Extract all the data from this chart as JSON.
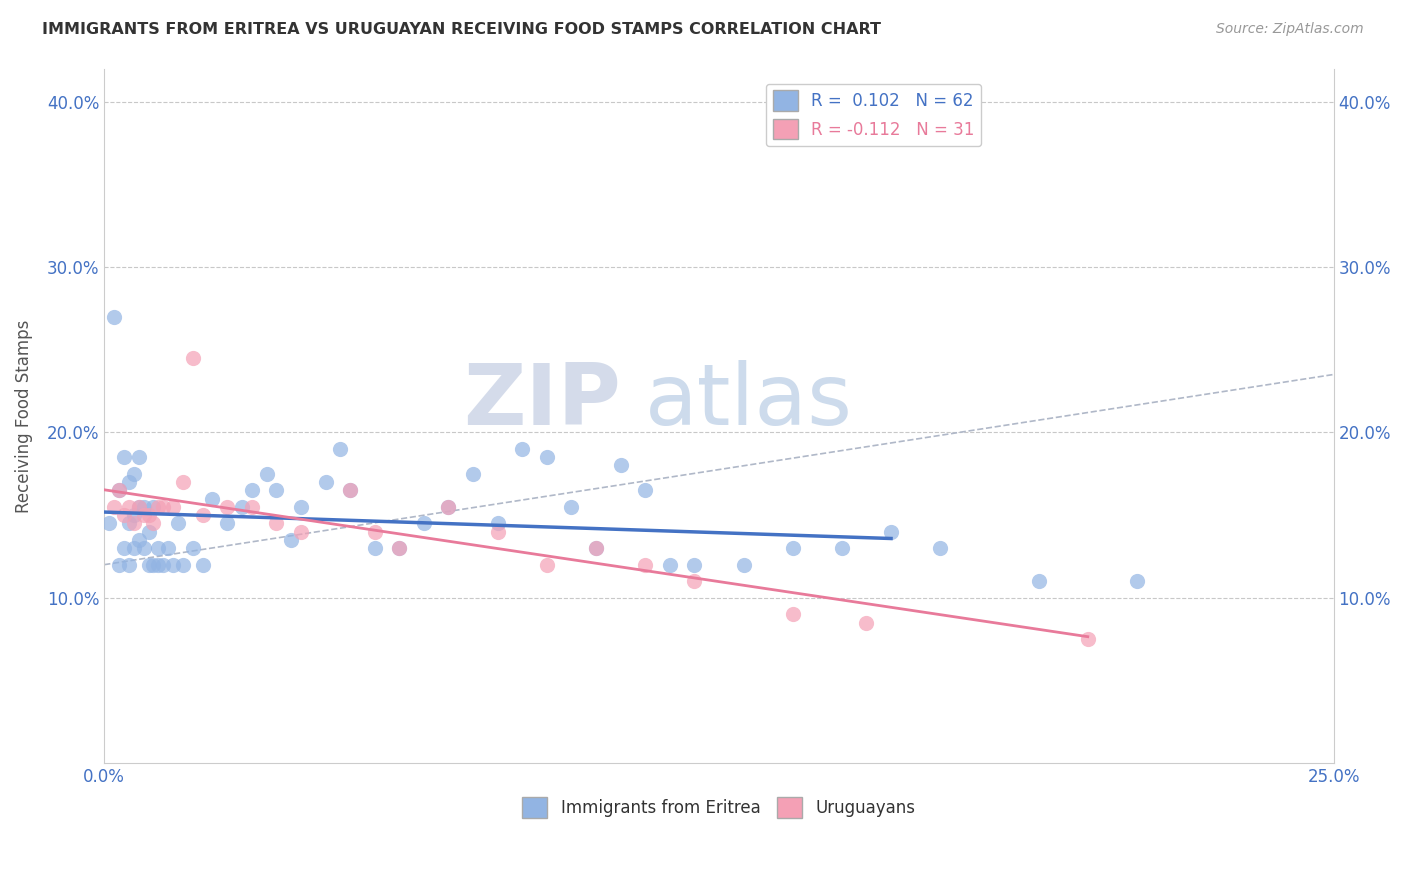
{
  "title": "IMMIGRANTS FROM ERITREA VS URUGUAYAN RECEIVING FOOD STAMPS CORRELATION CHART",
  "source": "Source: ZipAtlas.com",
  "ylabel": "Receiving Food Stamps",
  "xlim": [
    0.0,
    0.25
  ],
  "ylim": [
    0.0,
    0.42
  ],
  "xticks": [
    0.0,
    0.05,
    0.1,
    0.15,
    0.2,
    0.25
  ],
  "xtick_labels": [
    "0.0%",
    "",
    "",
    "",
    "",
    "25.0%"
  ],
  "yticks": [
    0.0,
    0.1,
    0.2,
    0.3,
    0.4
  ],
  "ytick_labels": [
    "",
    "10.0%",
    "20.0%",
    "30.0%",
    "40.0%"
  ],
  "legend_eritrea": "R =  0.102   N = 62",
  "legend_uruguayan": "R = -0.112   N = 31",
  "eritrea_color": "#92b4e3",
  "uruguayan_color": "#f4a0b5",
  "eritrea_line_color": "#4472c4",
  "uruguayan_line_color": "#e87a9a",
  "background_color": "#ffffff",
  "grid_color": "#c8c8c8",
  "watermark_zip": "ZIP",
  "watermark_atlas": "atlas",
  "eritrea_x": [
    0.001,
    0.002,
    0.003,
    0.003,
    0.004,
    0.004,
    0.005,
    0.005,
    0.005,
    0.006,
    0.006,
    0.006,
    0.007,
    0.007,
    0.007,
    0.008,
    0.008,
    0.009,
    0.009,
    0.01,
    0.01,
    0.011,
    0.011,
    0.012,
    0.013,
    0.014,
    0.015,
    0.016,
    0.018,
    0.02,
    0.022,
    0.025,
    0.028,
    0.03,
    0.033,
    0.035,
    0.038,
    0.04,
    0.045,
    0.048,
    0.05,
    0.055,
    0.06,
    0.065,
    0.07,
    0.075,
    0.08,
    0.085,
    0.09,
    0.095,
    0.1,
    0.105,
    0.11,
    0.115,
    0.12,
    0.13,
    0.14,
    0.15,
    0.16,
    0.17,
    0.19,
    0.21
  ],
  "eritrea_y": [
    0.145,
    0.27,
    0.12,
    0.165,
    0.13,
    0.185,
    0.12,
    0.145,
    0.17,
    0.13,
    0.15,
    0.175,
    0.135,
    0.155,
    0.185,
    0.13,
    0.155,
    0.12,
    0.14,
    0.12,
    0.155,
    0.12,
    0.13,
    0.12,
    0.13,
    0.12,
    0.145,
    0.12,
    0.13,
    0.12,
    0.16,
    0.145,
    0.155,
    0.165,
    0.175,
    0.165,
    0.135,
    0.155,
    0.17,
    0.19,
    0.165,
    0.13,
    0.13,
    0.145,
    0.155,
    0.175,
    0.145,
    0.19,
    0.185,
    0.155,
    0.13,
    0.18,
    0.165,
    0.12,
    0.12,
    0.12,
    0.13,
    0.13,
    0.14,
    0.13,
    0.11,
    0.11
  ],
  "uruguayan_x": [
    0.002,
    0.003,
    0.004,
    0.005,
    0.006,
    0.007,
    0.008,
    0.009,
    0.01,
    0.011,
    0.012,
    0.014,
    0.016,
    0.018,
    0.02,
    0.025,
    0.03,
    0.035,
    0.04,
    0.05,
    0.055,
    0.06,
    0.07,
    0.08,
    0.09,
    0.1,
    0.11,
    0.12,
    0.14,
    0.155,
    0.2
  ],
  "uruguayan_y": [
    0.155,
    0.165,
    0.15,
    0.155,
    0.145,
    0.155,
    0.15,
    0.15,
    0.145,
    0.155,
    0.155,
    0.155,
    0.17,
    0.245,
    0.15,
    0.155,
    0.155,
    0.145,
    0.14,
    0.165,
    0.14,
    0.13,
    0.155,
    0.14,
    0.12,
    0.13,
    0.12,
    0.11,
    0.09,
    0.085,
    0.075
  ]
}
